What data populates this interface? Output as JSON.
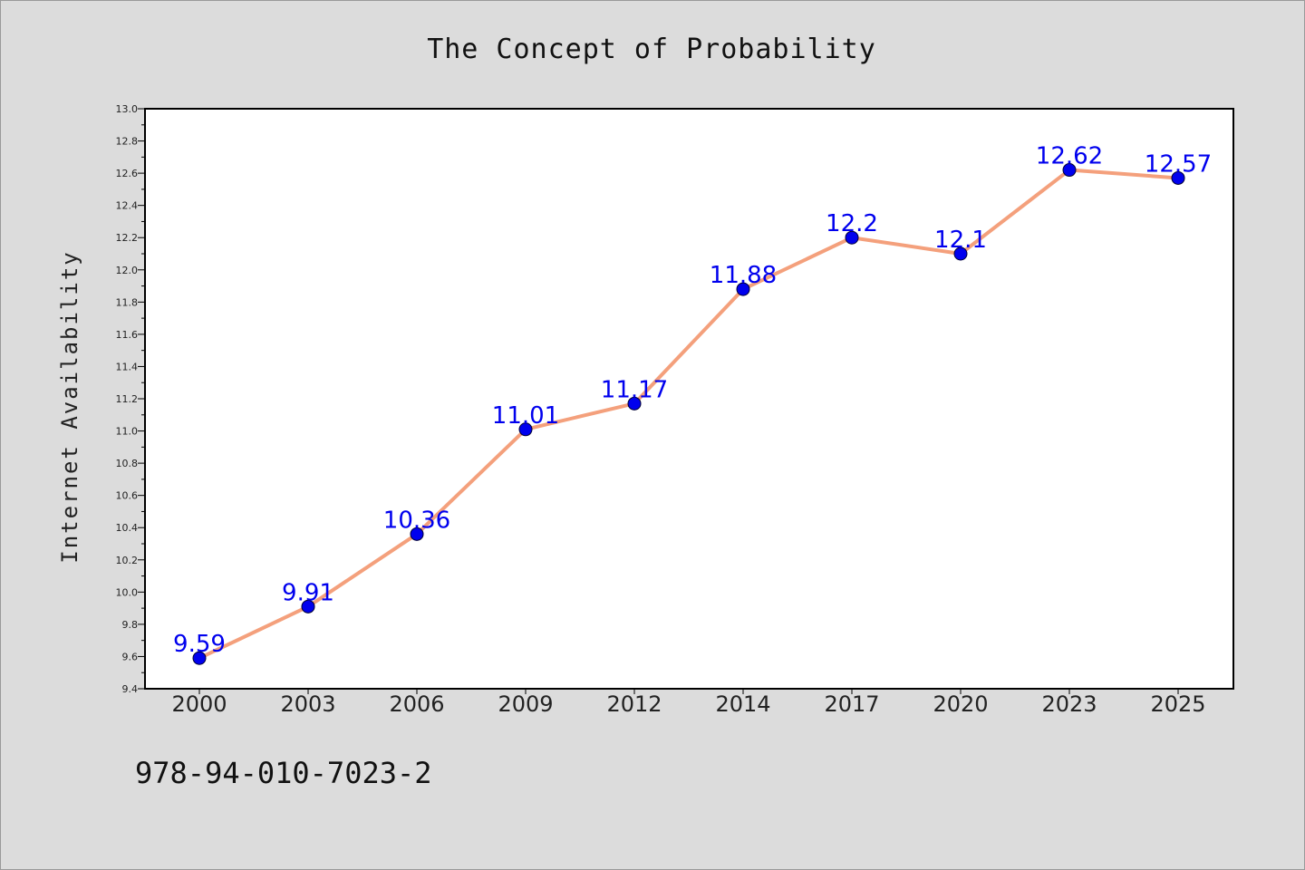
{
  "chart_data": {
    "type": "line",
    "title": "The Concept of Probability",
    "xlabel": "",
    "ylabel": "Internet Availability",
    "categories": [
      "2000",
      "2003",
      "2006",
      "2009",
      "2012",
      "2014",
      "2017",
      "2020",
      "2023",
      "2025"
    ],
    "series": [
      {
        "values": [
          9.59,
          9.91,
          10.36,
          11.01,
          11.17,
          11.88,
          12.2,
          12.1,
          12.62,
          12.57
        ],
        "data_labels": [
          "9.59",
          "9.91",
          "10.36",
          "11.01",
          "11.17",
          "11.88",
          "12.2",
          "12.1",
          "12.62",
          "12.57"
        ],
        "line_color": "#f4a07c",
        "marker_color": "#0000ee"
      }
    ],
    "ylim": [
      9.4,
      13.0
    ],
    "yticks": [
      "9.4",
      "9.6",
      "9.8",
      "10.0",
      "10.2",
      "10.4",
      "10.6",
      "10.8",
      "11.0",
      "11.2",
      "11.4",
      "11.6",
      "11.8",
      "12.0",
      "12.2",
      "12.4",
      "12.6",
      "12.8",
      "13.0"
    ],
    "grid": false,
    "legend": "none"
  },
  "footer": {
    "text": "978-94-010-7023-2"
  },
  "colors": {
    "background": "#dcdcdc",
    "plot_background": "#ffffff",
    "label_color": "#0000ee"
  }
}
